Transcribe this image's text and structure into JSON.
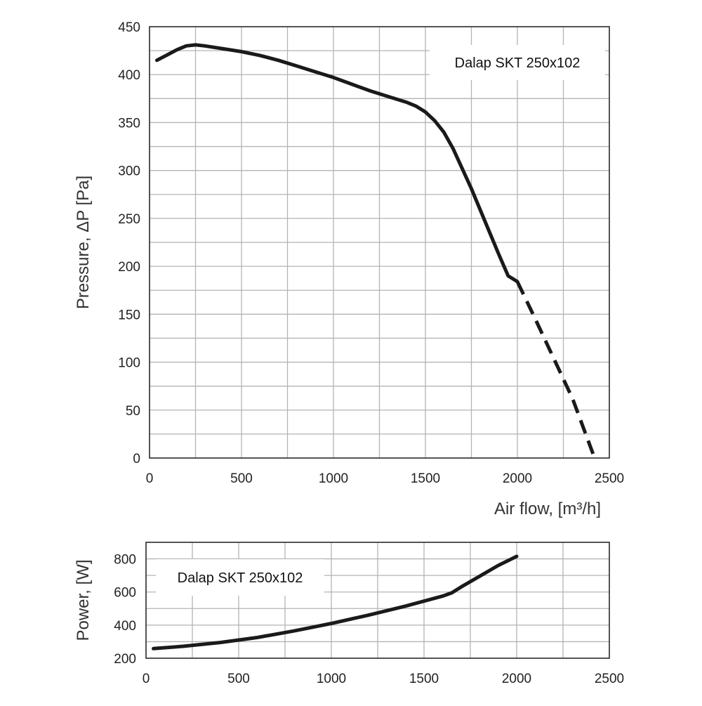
{
  "chart_data": [
    {
      "type": "line",
      "ylabel": "Pressure, ΔP [Pa]",
      "xlabel": "Air flow, [m³/h]",
      "xlim": [
        0,
        2500
      ],
      "ylim": [
        0,
        450
      ],
      "x_ticks": [
        0,
        500,
        1000,
        1500,
        2000,
        2500
      ],
      "y_ticks": [
        0,
        50,
        100,
        150,
        200,
        250,
        300,
        350,
        400,
        450
      ],
      "x_grid_step": 250,
      "y_grid_step": 25,
      "grid": true,
      "legend_placement": "top-right",
      "series": [
        {
          "name": "Dalap SKT 250x102",
          "x": [
            40,
            100,
            150,
            200,
            250,
            300,
            400,
            500,
            600,
            700,
            800,
            900,
            1000,
            1100,
            1200,
            1300,
            1400,
            1450,
            1500,
            1550,
            1600,
            1650,
            1700,
            1750,
            1800,
            1850,
            1900,
            1950,
            2000
          ],
          "y": [
            415,
            421,
            426,
            430,
            431,
            430,
            427,
            424,
            420,
            415,
            409,
            403,
            397,
            390,
            383,
            377,
            371,
            367,
            361,
            352,
            340,
            323,
            302,
            281,
            258,
            235,
            212,
            190,
            184
          ],
          "line_style": "solid"
        },
        {
          "name": "Dalap SKT 250x102",
          "x": [
            2000,
            2100,
            2200,
            2300,
            2420
          ],
          "y": [
            184,
            144,
            103,
            62,
            0
          ],
          "line_style": "dashed"
        }
      ]
    },
    {
      "type": "line",
      "ylabel": "Power, [W]",
      "xlabel": "",
      "xlim": [
        0,
        2500
      ],
      "ylim": [
        200,
        900
      ],
      "x_ticks": [
        0,
        500,
        1000,
        1500,
        2000,
        2500
      ],
      "y_ticks": [
        200,
        400,
        600,
        800
      ],
      "x_grid_step": 250,
      "y_grid_step": 100,
      "grid": true,
      "legend_placement": "top-left",
      "series": [
        {
          "name": "Dalap SKT 250x102",
          "x": [
            40,
            200,
            400,
            600,
            800,
            1000,
            1200,
            1400,
            1600,
            1650,
            1700,
            1800,
            1900,
            2000
          ],
          "y": [
            258,
            272,
            295,
            325,
            365,
            410,
            460,
            515,
            575,
            595,
            630,
            695,
            760,
            815
          ],
          "line_style": "solid"
        }
      ]
    }
  ]
}
